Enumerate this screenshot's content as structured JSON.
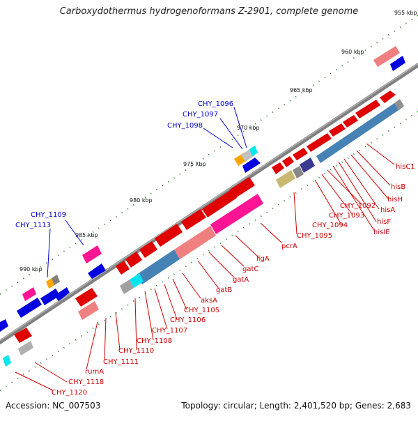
{
  "title": "Carboxydothermus hydrogenoformans Z-2901, complete genome",
  "footer": {
    "accession": "Accession: NC_007503",
    "stats": "Topology: circular; Length: 2,401,520 bp; Genes: 2,683"
  },
  "scale_labels": [
    "955 kbp",
    "960 kbp",
    "965 kbp",
    "970 kbp",
    "975 kbp",
    "980 kbp",
    "985 kbp",
    "990 kbp"
  ],
  "gene_labels_red": [
    "hisC1",
    "hisB",
    "hisH",
    "hisA",
    "hisF",
    "hisIE",
    "CHY_1092",
    "CHY_1093",
    "CHY_1094",
    "CHY_1095",
    "pcrA",
    "ligA",
    "gatC",
    "gatA",
    "gatB",
    "aksA",
    "CHY_1105",
    "CHY_1106",
    "CHY_1107",
    "CHY_1108",
    "CHY_1110",
    "CHY_1111",
    "rumA",
    "CHY_1118",
    "CHY_1120"
  ],
  "gene_labels_blue": [
    "CHY_1096",
    "CHY_1097",
    "CHY_1098",
    "CHY_1109",
    "CHY_1113"
  ],
  "colors": {
    "backbone": "#808080",
    "forward_gene": "#ff0000",
    "reverse_gene": "#0000e0",
    "forward_rna": "#f08080",
    "cds_magenta": "#ff1493",
    "cds_blue": "#4682b4",
    "label_red": "#cc0000",
    "label_blue": "#0000cc",
    "tick": "#1a7a1a"
  }
}
